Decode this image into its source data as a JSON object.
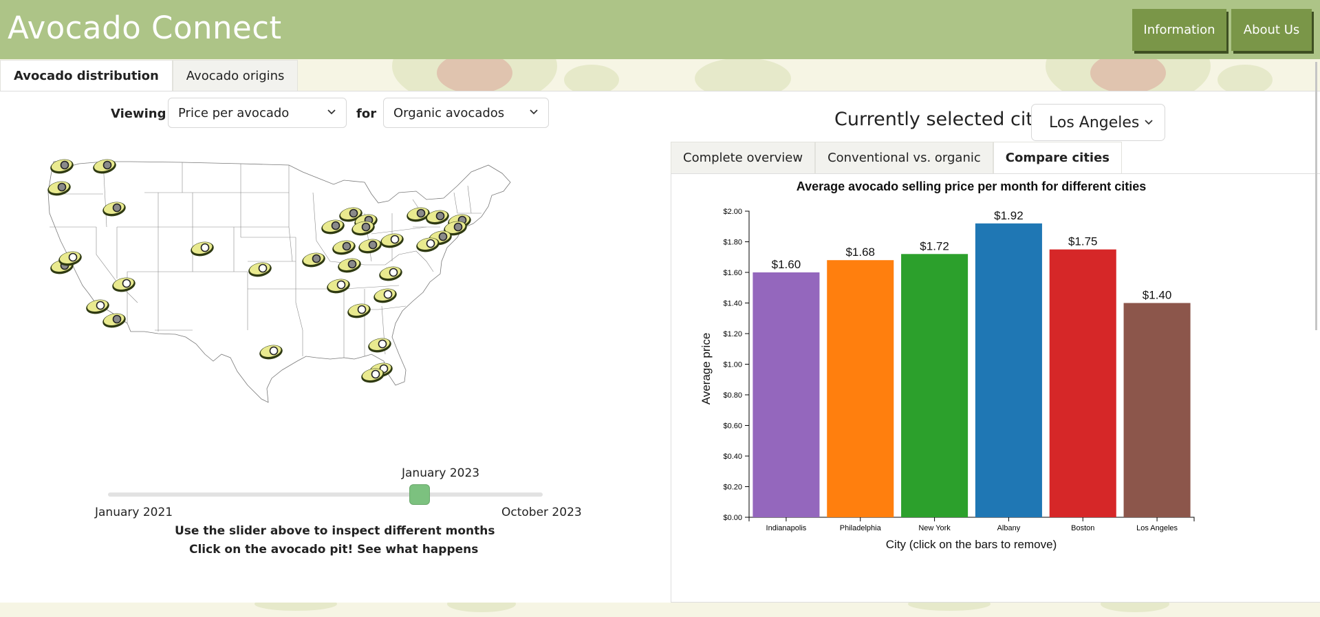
{
  "header": {
    "title": "Avocado Connect",
    "buttons": {
      "information": "Information",
      "about": "About Us"
    }
  },
  "tabs": [
    {
      "label": "Avocado distribution",
      "active": true
    },
    {
      "label": "Avocado origins",
      "active": false
    }
  ],
  "controls": {
    "viewing_label": "Viewing",
    "metric_value": "Price per avocado",
    "for_label": "for",
    "type_value": "Organic avocados"
  },
  "slider": {
    "current": "January 2023",
    "min": "January 2021",
    "max": "October 2023",
    "position": 0.72
  },
  "help": {
    "line1": "Use the slider above to inspect different months",
    "line2": "Click on the avocado pit! See what happens"
  },
  "city_select": {
    "label": "Currently selected city:",
    "value": "Los Angeles"
  },
  "sub_tabs": [
    {
      "label": "Complete overview",
      "active": false
    },
    {
      "label": "Conventional vs. organic",
      "active": false
    },
    {
      "label": "Compare cities",
      "active": true
    }
  ],
  "colors": {
    "header": "#adc487",
    "button": "#7a9648",
    "avocado_flesh": "#e9ea8f",
    "avocado_skin": "#2f3a12",
    "pit_dark": "#8a8a8a",
    "pit_light": "#ffffff"
  },
  "chart_data": {
    "type": "bar",
    "title": "Average avocado selling price per month for different cities",
    "xlabel": "City (click on the bars to remove)",
    "ylabel": "Average price",
    "categories": [
      "Indianapolis",
      "Philadelphia",
      "New York",
      "Albany",
      "Boston",
      "Los Angeles"
    ],
    "values": [
      1.6,
      1.68,
      1.72,
      1.92,
      1.75,
      1.4
    ],
    "value_labels": [
      "$1.60",
      "$1.68",
      "$1.72",
      "$1.92",
      "$1.75",
      "$1.40"
    ],
    "bar_colors": [
      "#9467bd",
      "#ff7f0e",
      "#2ca02c",
      "#1f77b4",
      "#d62728",
      "#8c564b"
    ],
    "ylim": [
      0,
      2.0
    ],
    "y_ticks": [
      "$0.00",
      "$0.20",
      "$0.40",
      "$0.60",
      "$0.80",
      "$1.00",
      "$1.20",
      "$1.40",
      "$1.60",
      "$1.80",
      "$2.00"
    ],
    "grid": false
  }
}
